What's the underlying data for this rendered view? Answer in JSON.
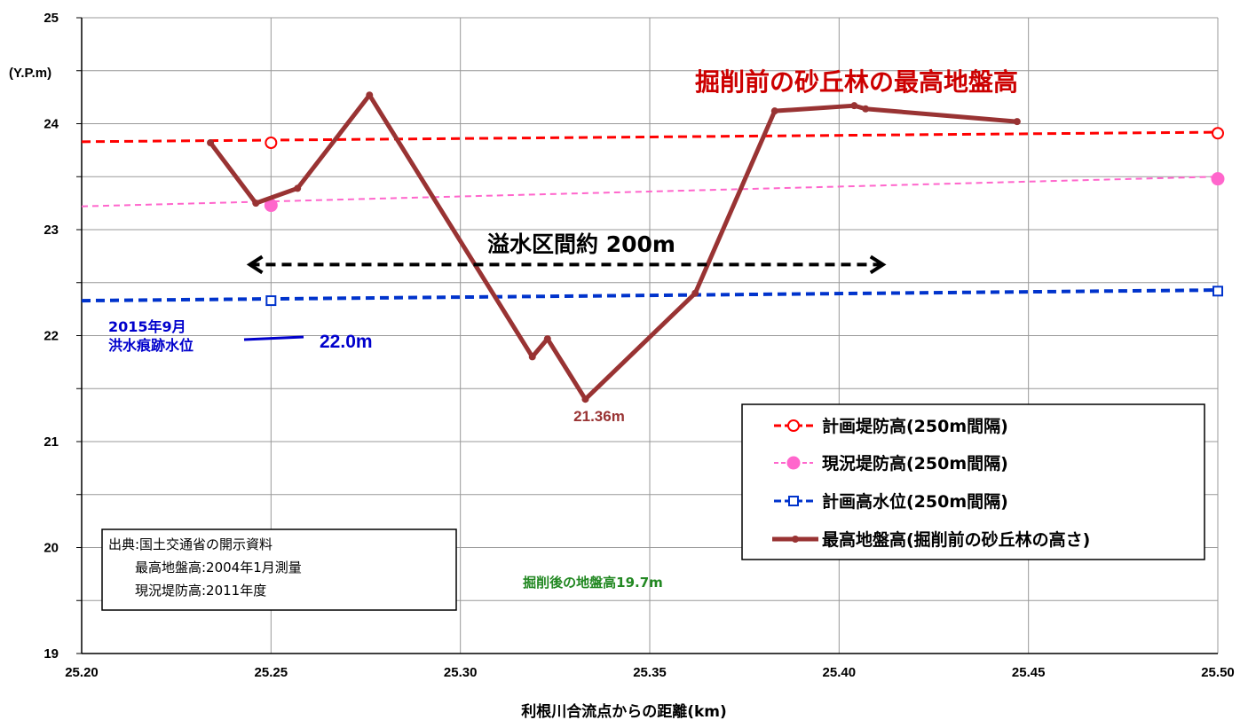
{
  "chart_data": {
    "type": "line",
    "xlabel": "利根川合流点からの距離(km)",
    "ylabel": "(Y.P.m)",
    "xlim": [
      25.2,
      25.5
    ],
    "ylim": [
      19,
      25
    ],
    "x_ticks": [
      "25.20",
      "25.25",
      "25.30",
      "25.35",
      "25.40",
      "25.45",
      "25.50"
    ],
    "y_ticks": [
      "19",
      "20",
      "21",
      "22",
      "23",
      "24",
      "25"
    ],
    "grid": true,
    "legend_position": "right",
    "series": [
      {
        "name": "計画堤防高(250m間隔)",
        "color": "#ff0000",
        "style": "dashed",
        "marker": "open-circle",
        "line": [
          [
            25.2,
            23.83
          ],
          [
            25.5,
            23.92
          ]
        ],
        "points": [
          [
            25.25,
            23.82
          ],
          [
            25.5,
            23.91
          ]
        ]
      },
      {
        "name": "現況堤防高(250m間隔)",
        "color": "#ff66cc",
        "style": "dashed",
        "marker": "filled-circle",
        "line": [
          [
            25.2,
            23.22
          ],
          [
            25.5,
            23.5
          ]
        ],
        "points": [
          [
            25.25,
            23.23
          ],
          [
            25.5,
            23.48
          ]
        ]
      },
      {
        "name": "計画高水位(250m間隔)",
        "color": "#0033cc",
        "style": "dashed",
        "marker": "open-square",
        "line": [
          [
            25.2,
            22.33
          ],
          [
            25.5,
            22.43
          ]
        ],
        "points": [
          [
            25.25,
            22.33
          ],
          [
            25.5,
            22.42
          ]
        ]
      },
      {
        "name": "最高地盤高(掘削前の砂丘林の高さ)",
        "color": "#993333",
        "style": "solid",
        "marker": "dot",
        "points": [
          [
            25.234,
            23.82
          ],
          [
            25.246,
            23.25
          ],
          [
            25.257,
            23.39
          ],
          [
            25.276,
            24.27
          ],
          [
            25.319,
            21.8
          ],
          [
            25.323,
            21.97
          ],
          [
            25.333,
            21.4
          ],
          [
            25.362,
            22.4
          ],
          [
            25.383,
            24.12
          ],
          [
            25.404,
            24.17
          ],
          [
            25.407,
            24.14
          ],
          [
            25.447,
            24.02
          ]
        ]
      }
    ],
    "annotations": {
      "excavation_title": "掘削前の砂丘林の最高地盤高",
      "overflow_label": "溢水区間約 200m",
      "overflow_range": [
        25.243,
        25.413
      ],
      "overflow_level": 22.67,
      "flood_mark_line1": "2015年9月",
      "flood_mark_line2": "洪水痕跡水位",
      "flood_mark_value": "22.0m",
      "min_label": "21.36m",
      "after_excavation": "掘削後の地盤高19.7m"
    },
    "source_box": {
      "line1": "出典:国土交通省の開示資料",
      "line2": "最高地盤高:2004年1月測量",
      "line3": "現況堤防高:2011年度"
    },
    "colors": {
      "grid": "#999999",
      "title_red": "#cc0000",
      "flood_blue": "#0000cc",
      "min_brown": "#993333",
      "after_green": "#228822"
    }
  }
}
